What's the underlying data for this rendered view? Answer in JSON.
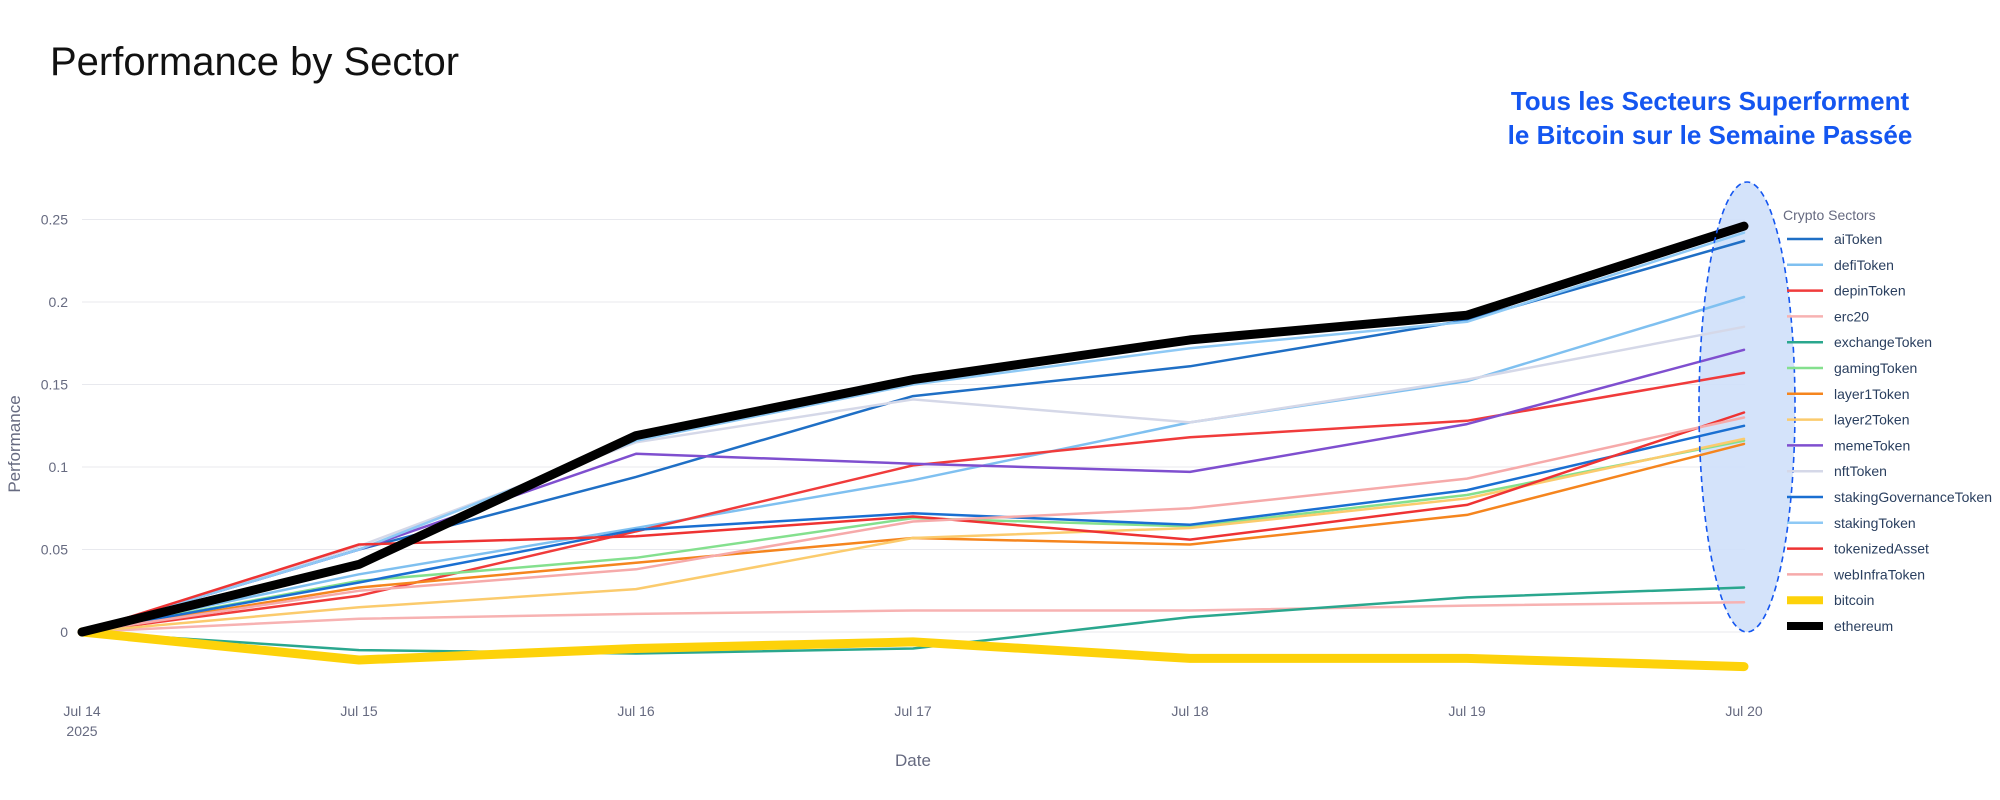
{
  "title": "Performance by Sector",
  "annotation": {
    "line1": "Tous les Secteurs Superforment",
    "line2": "le Bitcoin sur le Semaine Passée",
    "color": "#1456f0"
  },
  "chart_data": {
    "type": "line",
    "title": "Performance by Sector",
    "xlabel": "Date",
    "ylabel": "Performance",
    "x": [
      "Jul 14",
      "Jul 15",
      "Jul 16",
      "Jul 17",
      "Jul 18",
      "Jul 19",
      "Jul 20"
    ],
    "x_year": "2025",
    "ylim": [
      -0.025,
      0.27
    ],
    "yticks": [
      {
        "value": 0,
        "label": "0"
      },
      {
        "value": 0.05,
        "label": "0.05"
      },
      {
        "value": 0.1,
        "label": "0.1"
      },
      {
        "value": 0.15,
        "label": "0.15"
      },
      {
        "value": 0.2,
        "label": "0.2"
      },
      {
        "value": 0.25,
        "label": "0.25"
      }
    ],
    "grid": true,
    "legend_title": "Crypto Sectors",
    "legend_position": "right",
    "series": [
      {
        "name": "aiToken",
        "color": "#1f6fc5",
        "width": 2.5,
        "values": [
          0,
          0.05,
          0.094,
          0.143,
          0.161,
          0.189,
          0.237
        ]
      },
      {
        "name": "defiToken",
        "color": "#7fc0f0",
        "width": 2.5,
        "values": [
          0,
          0.035,
          0.063,
          0.092,
          0.127,
          0.152,
          0.203
        ]
      },
      {
        "name": "depinToken",
        "color": "#f03b3b",
        "width": 2.5,
        "values": [
          0,
          0.022,
          0.061,
          0.101,
          0.118,
          0.128,
          0.157
        ]
      },
      {
        "name": "erc20",
        "color": "#f7b2b2",
        "width": 2.5,
        "values": [
          0,
          0.008,
          0.011,
          0.013,
          0.013,
          0.016,
          0.018
        ]
      },
      {
        "name": "exchangeToken",
        "color": "#2aa78e",
        "width": 2.5,
        "values": [
          0,
          -0.011,
          -0.013,
          -0.01,
          0.009,
          0.021,
          0.027
        ]
      },
      {
        "name": "gamingToken",
        "color": "#84e08e",
        "width": 2.5,
        "values": [
          0,
          0.031,
          0.045,
          0.069,
          0.064,
          0.083,
          0.116
        ]
      },
      {
        "name": "layer1Token",
        "color": "#f5851e",
        "width": 2.5,
        "values": [
          0,
          0.027,
          0.042,
          0.057,
          0.053,
          0.071,
          0.114
        ]
      },
      {
        "name": "layer2Token",
        "color": "#fbcb6d",
        "width": 2.5,
        "values": [
          0,
          0.015,
          0.026,
          0.057,
          0.063,
          0.081,
          0.117
        ]
      },
      {
        "name": "memeToken",
        "color": "#7f4fcf",
        "width": 2.5,
        "values": [
          0,
          0.05,
          0.108,
          0.102,
          0.097,
          0.126,
          0.171
        ]
      },
      {
        "name": "nftToken",
        "color": "#d5d8e8",
        "width": 2.5,
        "values": [
          0,
          0.052,
          0.115,
          0.141,
          0.127,
          0.153,
          0.185
        ]
      },
      {
        "name": "stakingGovernanceToken",
        "color": "#1a6fd1",
        "width": 2.5,
        "values": [
          0,
          0.03,
          0.062,
          0.072,
          0.065,
          0.086,
          0.125
        ]
      },
      {
        "name": "stakingToken",
        "color": "#8ec9f5",
        "width": 2.5,
        "values": [
          0,
          0.05,
          0.116,
          0.15,
          0.172,
          0.188,
          0.242
        ]
      },
      {
        "name": "tokenizedAsset",
        "color": "#ee3333",
        "width": 2.5,
        "values": [
          0,
          0.053,
          0.058,
          0.07,
          0.056,
          0.077,
          0.133
        ]
      },
      {
        "name": "webInfraToken",
        "color": "#f6aaaa",
        "width": 2.5,
        "values": [
          0,
          0.025,
          0.038,
          0.067,
          0.075,
          0.093,
          0.13
        ]
      },
      {
        "name": "bitcoin",
        "color": "#fdd20a",
        "width": 9,
        "values": [
          0,
          -0.017,
          -0.01,
          -0.006,
          -0.016,
          -0.016,
          -0.021
        ]
      },
      {
        "name": "ethereum",
        "color": "#000000",
        "width": 9,
        "values": [
          0,
          0.041,
          0.119,
          0.153,
          0.177,
          0.192,
          0.246
        ]
      }
    ],
    "highlight": {
      "type": "ellipse",
      "around": "Jul 20",
      "fill": "#cfe0fa",
      "stroke": "#1456f0",
      "style": "dashed"
    }
  }
}
